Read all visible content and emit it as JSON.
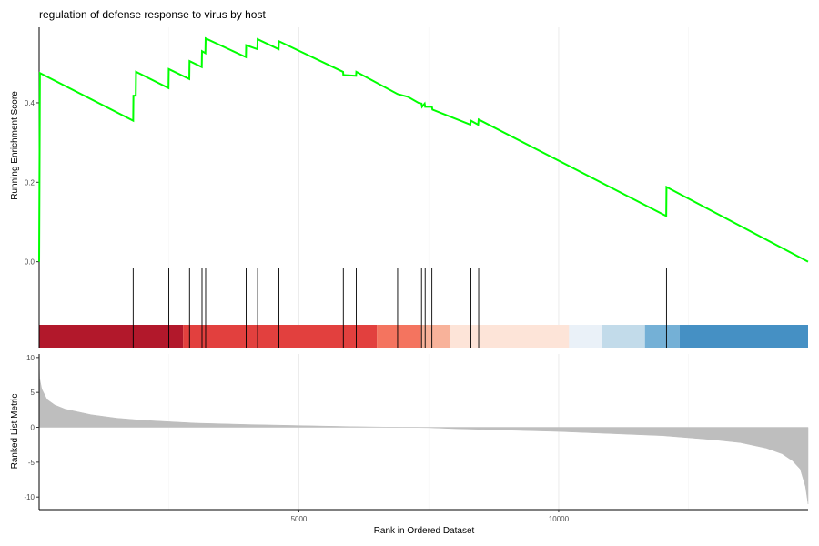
{
  "chart_data": {
    "type": "line",
    "title": "regulation of defense response to virus by host",
    "xlabel": "Rank in Ordered Dataset",
    "xlim": [
      0,
      14800
    ],
    "x_ticks": [
      5000,
      10000
    ],
    "grid": "vertical major lines only",
    "panels": [
      {
        "name": "running-score",
        "type": "line",
        "ylabel": "Running Enrichment Score",
        "ylim": [
          -0.01,
          0.59
        ],
        "y_ticks": [
          0.0,
          0.2,
          0.4
        ],
        "color": "#00ff00",
        "x": [
          0,
          15,
          1810,
          1815,
          1860,
          1865,
          2490,
          2495,
          2890,
          2895,
          3130,
          3135,
          3200,
          3205,
          3980,
          3985,
          4200,
          4205,
          4610,
          4615,
          5850,
          5855,
          6100,
          6105,
          6900,
          7100,
          7300,
          7360,
          7370,
          7420,
          7430,
          7560,
          7570,
          8300,
          8310,
          8450,
          8460,
          12070,
          12075,
          14800
        ],
        "y": [
          0.0,
          0.475,
          0.355,
          0.418,
          0.418,
          0.478,
          0.437,
          0.485,
          0.46,
          0.505,
          0.49,
          0.53,
          0.525,
          0.562,
          0.515,
          0.545,
          0.535,
          0.56,
          0.535,
          0.555,
          0.478,
          0.47,
          0.468,
          0.478,
          0.422,
          0.415,
          0.4,
          0.398,
          0.39,
          0.398,
          0.39,
          0.39,
          0.383,
          0.345,
          0.355,
          0.345,
          0.358,
          0.115,
          0.188,
          0.0
        ]
      },
      {
        "name": "gene-hits",
        "type": "rug",
        "x": [
          0,
          1810,
          1865,
          2495,
          2895,
          3135,
          3205,
          3985,
          4205,
          4615,
          5855,
          6105,
          6900,
          7360,
          7430,
          7560,
          8310,
          8460,
          12075
        ],
        "color_bands": [
          {
            "from": 0,
            "to": 2770,
            "color": "#b2182b"
          },
          {
            "from": 2770,
            "to": 6500,
            "color": "#e2403e"
          },
          {
            "from": 6500,
            "to": 7350,
            "color": "#f4745f"
          },
          {
            "from": 7350,
            "to": 7900,
            "color": "#f8b29a"
          },
          {
            "from": 7900,
            "to": 10200,
            "color": "#fde4d8"
          },
          {
            "from": 10200,
            "to": 10830,
            "color": "#eaf1f8"
          },
          {
            "from": 10830,
            "to": 11660,
            "color": "#c2dbea"
          },
          {
            "from": 11660,
            "to": 12330,
            "color": "#74b0d6"
          },
          {
            "from": 12330,
            "to": 14800,
            "color": "#4590c4"
          }
        ]
      },
      {
        "name": "ranked-metric",
        "type": "area",
        "ylabel": "Ranked List Metric",
        "ylim": [
          -11.8,
          10.5
        ],
        "y_ticks": [
          10,
          5,
          0,
          -5,
          -10
        ],
        "color": "#bebebe",
        "x": [
          0,
          10,
          50,
          150,
          300,
          500,
          1000,
          1500,
          2000,
          2500,
          3000,
          4000,
          5000,
          6000,
          7000,
          7500,
          8000,
          9000,
          10000,
          11000,
          12000,
          12500,
          13000,
          13500,
          14000,
          14300,
          14500,
          14650,
          14750,
          14800
        ],
        "y": [
          9.5,
          7.0,
          5.5,
          4.0,
          3.2,
          2.6,
          1.8,
          1.3,
          1.0,
          0.8,
          0.6,
          0.4,
          0.25,
          0.1,
          0.0,
          -0.05,
          -0.2,
          -0.4,
          -0.6,
          -0.9,
          -1.2,
          -1.5,
          -1.8,
          -2.2,
          -3.0,
          -3.8,
          -4.8,
          -6.0,
          -8.5,
          -11.0
        ]
      }
    ]
  }
}
